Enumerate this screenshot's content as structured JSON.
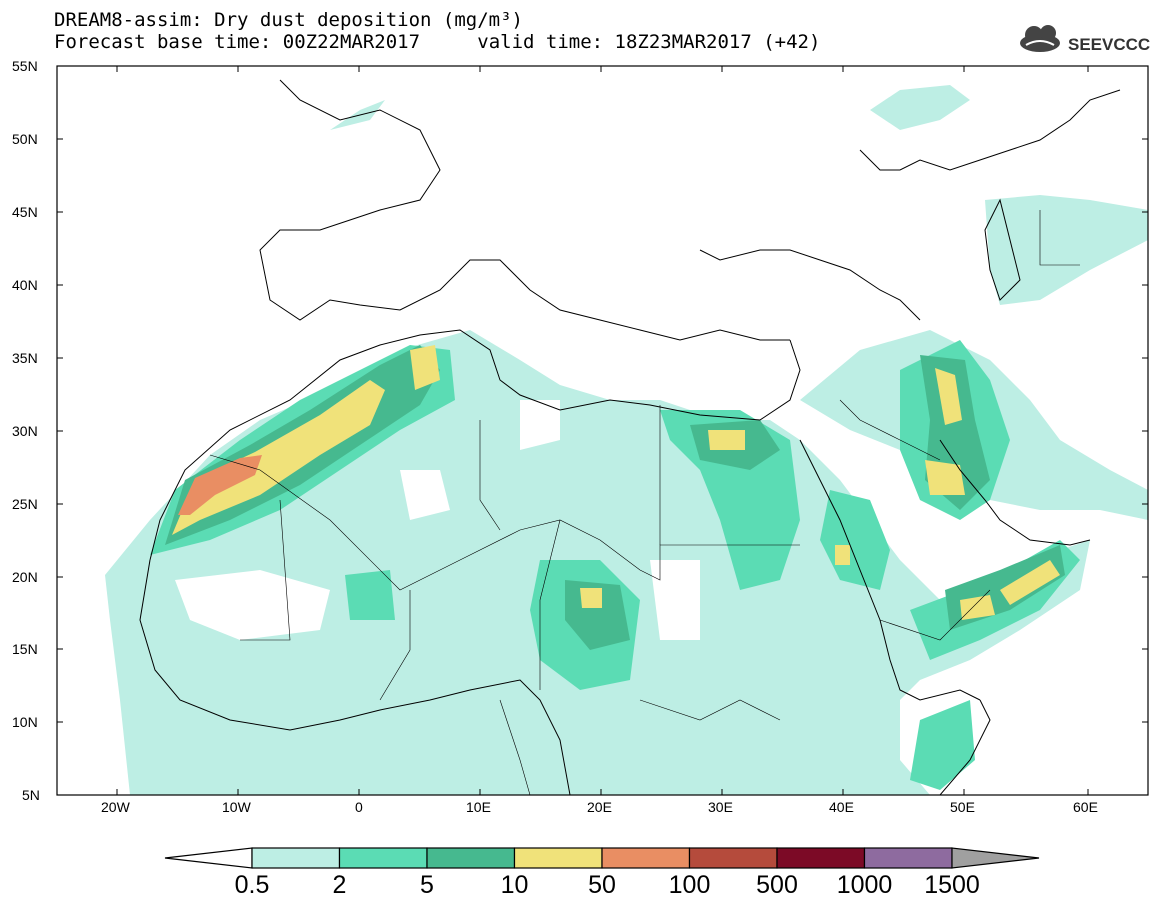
{
  "title_line1": "DREAM8-assim: Dry dust deposition (mg/m³)",
  "title_line2_left": "Forecast base time: 00Z22MAR2017",
  "title_line2_right": "valid time: 18Z23MAR2017 (+42)",
  "logo": {
    "text": "SEEVCCC",
    "icon": "cloud-icon"
  },
  "map": {
    "lon_range": [
      -25,
      65
    ],
    "lat_range": [
      5,
      55
    ],
    "lat_ticks": [
      "55N",
      "50N",
      "45N",
      "40N",
      "35N",
      "30N",
      "25N",
      "20N",
      "15N",
      "10N",
      "5N"
    ],
    "lon_ticks": [
      "20W",
      "10W",
      "0",
      "10E",
      "20E",
      "30E",
      "40E",
      "50E",
      "60E"
    ]
  },
  "colorbar": {
    "labels": [
      "0.5",
      "2",
      "5",
      "10",
      "50",
      "100",
      "500",
      "1000",
      "1500"
    ],
    "colors": [
      "#bdeee4",
      "#5bdcb4",
      "#46b98f",
      "#f0e27a",
      "#e98e63",
      "#b54b3c",
      "#7c0a26",
      "#8e6b9f",
      "#a0a0a0"
    ]
  }
}
